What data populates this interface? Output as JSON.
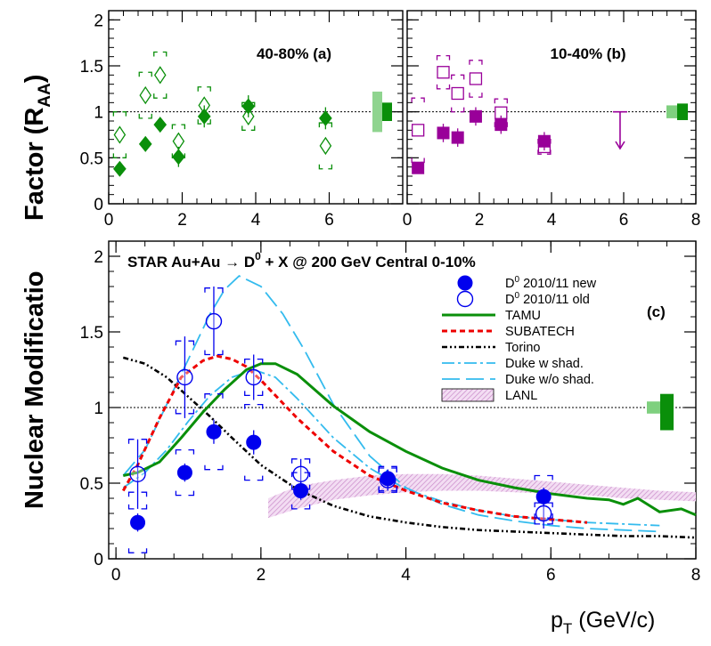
{
  "figure": {
    "ylabel_part1": "Nuclear Modificatio",
    "ylabel_part2": "Factor (R",
    "ylabel_sub": "AA",
    "ylabel_close": ")",
    "xlabel_main": "p",
    "xlabel_sub": "T",
    "xlabel_rest": " (GeV/c)"
  },
  "chart_data": [
    {
      "type": "scatter",
      "panel": "(a)",
      "title": "40-80%  (a)",
      "xlim": [
        0,
        8
      ],
      "ylim": [
        0,
        2.1
      ],
      "xticks": [
        "0",
        "2",
        "4",
        "6"
      ],
      "yticks": [
        "0",
        "0.5",
        "1",
        "1.5",
        "2"
      ],
      "reference_line": 1,
      "colors": {
        "series": "#0a8f0a",
        "band_light": "#8fd48f",
        "band_dark": "#0a8f0a"
      },
      "series": [
        {
          "marker": "filled-diamond",
          "x": [
            0.3,
            1.0,
            1.4,
            1.9,
            2.6,
            3.8,
            5.9
          ],
          "y": [
            0.38,
            0.65,
            0.86,
            0.51,
            0.95,
            1.06,
            0.93
          ],
          "err": [
            0.07,
            0.08,
            0.08,
            0.11,
            0.12,
            0.12,
            0.12
          ]
        },
        {
          "marker": "open-diamond",
          "x": [
            0.3,
            1.0,
            1.4,
            1.9,
            2.6,
            3.8,
            5.9
          ],
          "y": [
            0.75,
            1.18,
            1.4,
            0.68,
            1.07,
            0.95,
            0.63
          ],
          "err": [
            0.25,
            0.25,
            0.25,
            0.18,
            0.2,
            0.15,
            0.25
          ]
        }
      ],
      "norm_band": {
        "light": [
          0.78,
          1.22
        ],
        "dark": [
          0.9,
          1.1
        ]
      }
    },
    {
      "type": "scatter",
      "panel": "(b)",
      "title": "10-40%  (b)",
      "xlim": [
        0,
        8
      ],
      "ylim": [
        0,
        2.1
      ],
      "xticks": [
        "0",
        "2",
        "4",
        "6",
        "8"
      ],
      "reference_line": 1,
      "colors": {
        "series": "#990099",
        "band_light": "#7fd07f",
        "band_dark": "#0a8f0a"
      },
      "series": [
        {
          "marker": "filled-square",
          "x": [
            0.3,
            1.0,
            1.4,
            1.9,
            2.6,
            3.8
          ],
          "y": [
            0.39,
            0.77,
            0.72,
            0.95,
            0.86,
            0.68
          ],
          "err": [
            0.05,
            0.1,
            0.1,
            0.1,
            0.1,
            0.1
          ]
        },
        {
          "marker": "open-square",
          "x": [
            0.3,
            1.0,
            1.4,
            1.9,
            2.6,
            3.8
          ],
          "y": [
            0.8,
            1.43,
            1.2,
            1.36,
            0.99,
            0.62
          ],
          "err": [
            0.35,
            0.18,
            0.2,
            0.2,
            0.15,
            0.08
          ]
        }
      ],
      "upper_limit": {
        "x": 5.9,
        "y": 1.0,
        "y_low": 0.6
      },
      "norm_band": {
        "light": [
          0.93,
          1.07
        ],
        "dark": [
          0.91,
          1.09
        ]
      }
    },
    {
      "type": "line",
      "panel": "(c)",
      "title": "STAR Au+Au → D⁰ + X @ 200 GeV Central 0-10%",
      "title_parts": {
        "before": "STAR Au+Au ",
        "arrow": "→",
        "mid": " D",
        "sup": "0",
        "after": " + X @ 200 GeV Central 0-10%"
      },
      "xlim": [
        -0.1,
        8
      ],
      "ylim": [
        0,
        2.1
      ],
      "xticks": [
        "0",
        "2",
        "4",
        "6",
        "8"
      ],
      "yticks": [
        "0",
        "0.5",
        "1",
        "1.5",
        "2"
      ],
      "reference_line": 1,
      "legend_position": "top-right",
      "colors": {
        "data": "#0000ee",
        "TAMU": "#0a8f0a",
        "SUBATECH": "#ee0000",
        "Torino": "#000000",
        "Duke": "#33bbee",
        "LANL": "#d9a6d9",
        "band_light": "#7fd07f",
        "band_dark": "#0a8f0a"
      },
      "legend": {
        "new_sup": "0",
        "new_text": " 2010/11 new",
        "old_sup": "0",
        "old_text": " 2010/11 old",
        "tamu": "TAMU",
        "subatech": "SUBATECH",
        "torino": "Torino",
        "duke_w": "Duke w shad.",
        "duke_wo": "Duke w/o shad.",
        "lanl": "LANL",
        "panel_label": "(c)"
      },
      "data_new": {
        "x": [
          0.3,
          0.95,
          1.35,
          1.9,
          2.55,
          3.75,
          5.9
        ],
        "y": [
          0.24,
          0.57,
          0.84,
          0.77,
          0.45,
          0.53,
          0.41
        ],
        "err": [
          0.06,
          0.06,
          0.08,
          0.08,
          0.06,
          0.06,
          0.06
        ],
        "sys": [
          0.2,
          0.15,
          0.25,
          0.25,
          0.12,
          0.08,
          0.14
        ]
      },
      "data_old": {
        "x": [
          0.3,
          0.95,
          1.35,
          1.9,
          2.55,
          3.75,
          5.9
        ],
        "y": [
          0.56,
          1.2,
          1.57,
          1.2,
          0.56,
          0.52,
          0.3
        ],
        "err": [
          0.23,
          0.27,
          0.23,
          0.15,
          0.1,
          0.07,
          0.1
        ],
        "sys": [
          0.23,
          0.24,
          0.22,
          0.12,
          0.1,
          0.08,
          0.07
        ]
      },
      "models": {
        "TAMU": {
          "x": [
            0.1,
            0.3,
            0.6,
            0.9,
            1.2,
            1.5,
            1.8,
            2.0,
            2.2,
            2.5,
            3.0,
            3.5,
            4.0,
            4.5,
            5.0,
            5.5,
            6.0,
            6.5,
            6.8,
            7.0,
            7.2,
            7.5,
            7.8,
            8.0
          ],
          "y": [
            0.55,
            0.57,
            0.64,
            0.8,
            0.97,
            1.12,
            1.25,
            1.29,
            1.29,
            1.22,
            1.01,
            0.84,
            0.71,
            0.6,
            0.52,
            0.47,
            0.43,
            0.4,
            0.39,
            0.36,
            0.4,
            0.31,
            0.33,
            0.29
          ]
        },
        "SUBATECH": {
          "x": [
            0.1,
            0.3,
            0.6,
            0.9,
            1.2,
            1.4,
            1.6,
            1.8,
            2.0,
            2.5,
            3.0,
            3.5,
            4.0,
            4.5,
            5.0,
            5.5,
            6.0,
            6.5
          ],
          "y": [
            0.45,
            0.62,
            0.93,
            1.2,
            1.31,
            1.34,
            1.32,
            1.27,
            1.18,
            0.93,
            0.71,
            0.55,
            0.45,
            0.37,
            0.32,
            0.28,
            0.26,
            0.24
          ]
        },
        "Torino": {
          "x": [
            0.1,
            0.4,
            0.7,
            1.0,
            1.3,
            1.6,
            2.0,
            2.5,
            3.0,
            3.5,
            4.0,
            4.5,
            5.0,
            5.5,
            6.0,
            6.5,
            7.0,
            7.5,
            8.0
          ],
          "y": [
            1.33,
            1.29,
            1.2,
            1.07,
            0.94,
            0.8,
            0.62,
            0.46,
            0.35,
            0.28,
            0.24,
            0.21,
            0.19,
            0.18,
            0.17,
            0.16,
            0.15,
            0.15,
            0.14
          ]
        },
        "Duke w shad.": {
          "x": [
            0.1,
            0.4,
            0.7,
            1.0,
            1.3,
            1.6,
            1.9,
            2.2,
            2.5,
            3.0,
            3.5,
            4.0,
            4.5,
            5.0,
            5.5,
            6.0,
            6.5,
            7.0,
            7.5
          ],
          "y": [
            0.47,
            0.57,
            0.72,
            0.91,
            1.08,
            1.2,
            1.25,
            1.2,
            1.06,
            0.8,
            0.6,
            0.46,
            0.38,
            0.32,
            0.28,
            0.26,
            0.24,
            0.23,
            0.22
          ]
        },
        "Duke w/o shad.": {
          "x": [
            0.1,
            0.4,
            0.7,
            1.0,
            1.3,
            1.5,
            1.7,
            2.0,
            2.3,
            2.6,
            3.0,
            3.5,
            4.0,
            4.5,
            5.0,
            5.5,
            6.0,
            6.5,
            7.0,
            7.5
          ],
          "y": [
            0.55,
            0.72,
            1.02,
            1.32,
            1.62,
            1.78,
            1.87,
            1.8,
            1.62,
            1.38,
            1.02,
            0.68,
            0.47,
            0.36,
            0.29,
            0.25,
            0.22,
            0.2,
            0.19,
            0.18
          ]
        }
      },
      "LANL_band": {
        "x": [
          2.1,
          2.5,
          3.0,
          3.5,
          4.0,
          4.5,
          5.0,
          5.5,
          6.0,
          6.5,
          7.0,
          7.5,
          8.0
        ],
        "y_low": [
          0.27,
          0.33,
          0.39,
          0.42,
          0.44,
          0.45,
          0.45,
          0.44,
          0.43,
          0.42,
          0.4,
          0.39,
          0.38
        ],
        "y_high": [
          0.4,
          0.48,
          0.52,
          0.55,
          0.56,
          0.56,
          0.55,
          0.53,
          0.51,
          0.49,
          0.47,
          0.45,
          0.44
        ]
      },
      "norm_band": {
        "light": [
          0.96,
          1.04
        ],
        "dark": [
          0.85,
          1.09
        ]
      }
    }
  ]
}
